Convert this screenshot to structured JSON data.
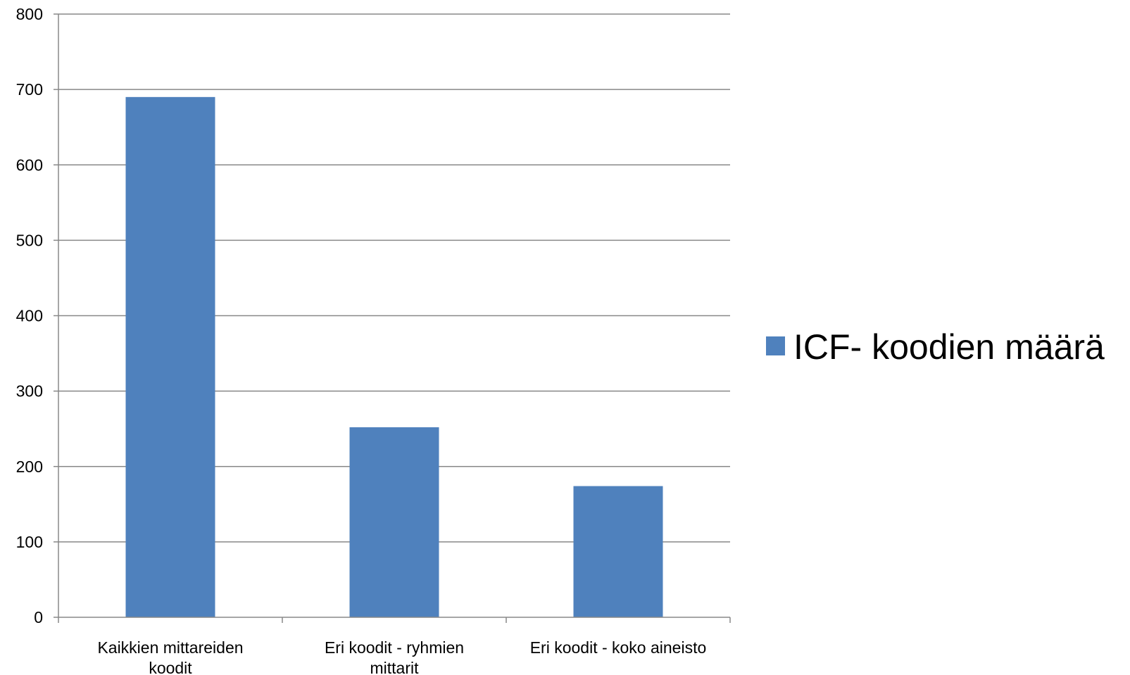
{
  "chart_data": {
    "type": "bar",
    "categories": [
      [
        "Kaikkien mittareiden",
        "koodit"
      ],
      [
        "Eri koodit - ryhmien",
        "mittarit"
      ],
      [
        "Eri koodit - koko aineisto"
      ]
    ],
    "series": [
      {
        "name": "ICF- koodien määrä",
        "values": [
          690,
          252,
          174
        ],
        "color": "#4f81bd"
      }
    ],
    "ylim": [
      0,
      800
    ],
    "yticks": [
      "0",
      "100",
      "200",
      "300",
      "400",
      "500",
      "600",
      "700",
      "800"
    ],
    "grid": true,
    "legend_position": "right",
    "title": "",
    "xlabel": "",
    "ylabel": ""
  }
}
